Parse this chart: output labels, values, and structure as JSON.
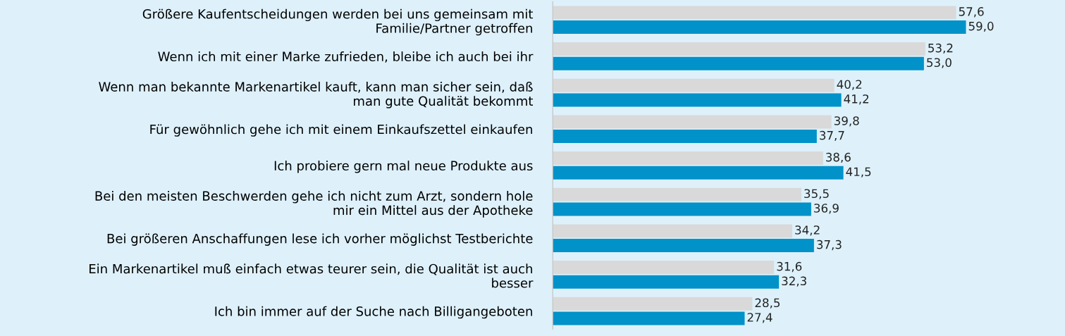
{
  "chart_data": {
    "type": "bar",
    "orientation": "horizontal",
    "categories": [
      "Größere Kaufentscheidungen werden bei uns gemeinsam mit\nFamilie/Partner getroffen",
      "Wenn ich mit einer Marke zufrieden, bleibe ich auch bei ihr",
      "Wenn man bekannte Markenartikel kauft, kann man sicher sein, daß\nman gute Qualität bekommt",
      "Für gewöhnlich gehe ich mit einem Einkaufszettel einkaufen",
      "Ich probiere gern mal neue Produkte aus",
      "Bei den meisten Beschwerden gehe ich nicht zum Arzt, sondern hole\nmir ein Mittel aus der Apotheke",
      "Bei größeren Anschaffungen lese ich vorher möglichst Testberichte",
      "Ein Markenartikel muß einfach etwas teurer sein, die Qualität ist auch\nbesser",
      "Ich bin immer auf der Suche nach Billigangeboten"
    ],
    "series": [
      {
        "color": "#d9d9d9",
        "values": [
          57.6,
          53.2,
          40.2,
          39.8,
          38.6,
          35.5,
          34.2,
          31.6,
          28.5
        ],
        "value_labels": [
          "57,6",
          "53,2",
          "40,2",
          "39,8",
          "38,6",
          "35,5",
          "34,2",
          "31,6",
          "28,5"
        ]
      },
      {
        "color": "#0092c8",
        "values": [
          59.0,
          53.0,
          41.2,
          37.7,
          41.5,
          36.9,
          37.3,
          32.3,
          27.4
        ],
        "value_labels": [
          "59,0",
          "53,0",
          "41,2",
          "37,7",
          "41,5",
          "36,9",
          "37,3",
          "32,3",
          "27,4"
        ]
      }
    ],
    "grid": false,
    "tick_labels": "y"
  }
}
